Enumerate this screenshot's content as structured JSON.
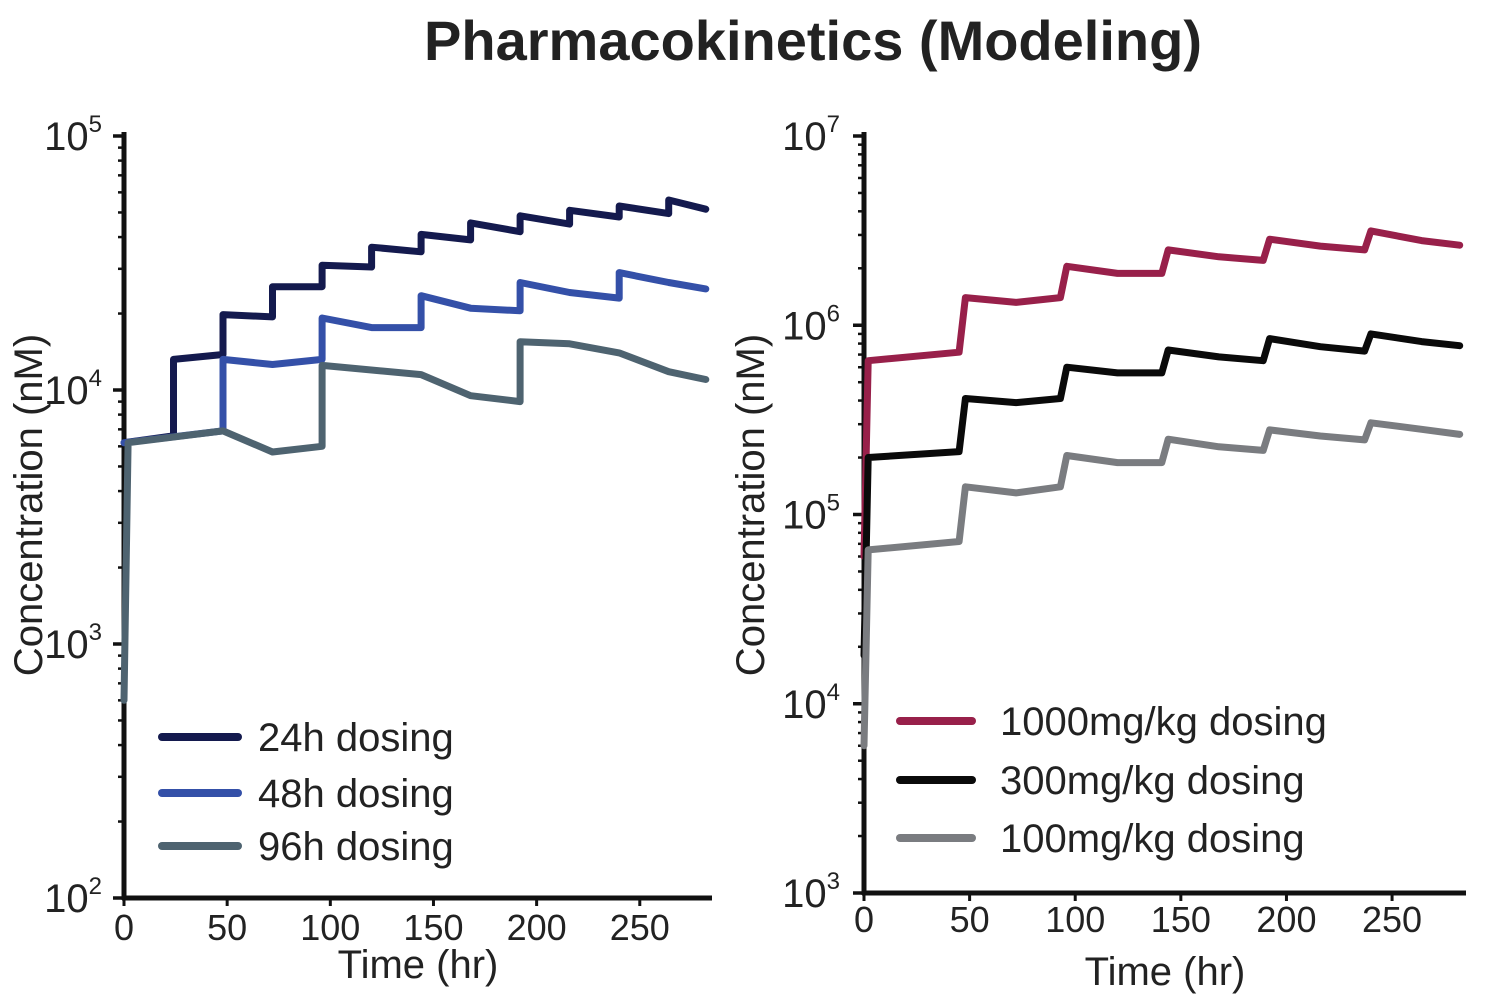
{
  "page_title": "Pharmacokinetics (Modeling)",
  "chart_data": [
    {
      "type": "line",
      "title": "",
      "xlabel": "Time (hr)",
      "ylabel": "Concentration (nM)",
      "yscale": "log",
      "xlim": [
        0,
        285
      ],
      "ylim": [
        100,
        100000
      ],
      "xticks": [
        0,
        50,
        100,
        150,
        200,
        250
      ],
      "xtick_labels": [
        "0",
        "50",
        "100",
        "150",
        "200",
        "250"
      ],
      "yticks": [
        100,
        1000,
        10000,
        100000
      ],
      "ytick_labels": [
        {
          "base": "10",
          "exp": "2"
        },
        {
          "base": "10",
          "exp": "3"
        },
        {
          "base": "10",
          "exp": "4"
        },
        {
          "base": "10",
          "exp": "5"
        }
      ],
      "legend_position": "bottom-left",
      "series": [
        {
          "name": "24h dosing",
          "color": "#141a4e",
          "points": [
            [
              0,
              6200
            ],
            [
              24,
              6600
            ],
            [
              24,
              13200
            ],
            [
              48,
              13800
            ],
            [
              48,
              19800
            ],
            [
              72,
              19400
            ],
            [
              72,
              25500
            ],
            [
              96,
              25500
            ],
            [
              96,
              31000
            ],
            [
              120,
              30500
            ],
            [
              120,
              36500
            ],
            [
              144,
              35000
            ],
            [
              144,
              41000
            ],
            [
              168,
              39000
            ],
            [
              168,
              45500
            ],
            [
              192,
              42000
            ],
            [
              192,
              48500
            ],
            [
              216,
              45000
            ],
            [
              216,
              51000
            ],
            [
              240,
              48000
            ],
            [
              240,
              53000
            ],
            [
              264,
              49500
            ],
            [
              264,
              56000
            ],
            [
              282,
              51500
            ]
          ]
        },
        {
          "name": "48h dosing",
          "color": "#3450a8",
          "points": [
            [
              0,
              6200
            ],
            [
              48,
              6900
            ],
            [
              48,
              13200
            ],
            [
              72,
              12600
            ],
            [
              96,
              13200
            ],
            [
              96,
              19200
            ],
            [
              120,
              17600
            ],
            [
              144,
              17600
            ],
            [
              144,
              23500
            ],
            [
              168,
              21000
            ],
            [
              192,
              20500
            ],
            [
              192,
              26500
            ],
            [
              216,
              24200
            ],
            [
              240,
              23000
            ],
            [
              240,
              29000
            ],
            [
              264,
              26500
            ],
            [
              282,
              25000
            ]
          ]
        },
        {
          "name": "96h dosing",
          "color": "#4e6370",
          "points": [
            [
              0,
              600
            ],
            [
              2,
              6200
            ],
            [
              48,
              6900
            ],
            [
              72,
              5700
            ],
            [
              96,
              6000
            ],
            [
              96,
              12500
            ],
            [
              144,
              11500
            ],
            [
              168,
              9500
            ],
            [
              192,
              9000
            ],
            [
              192,
              15500
            ],
            [
              216,
              15200
            ],
            [
              240,
              14000
            ],
            [
              264,
              11800
            ],
            [
              282,
              11000
            ]
          ]
        }
      ]
    },
    {
      "type": "line",
      "title": "",
      "xlabel": "Time (hr)",
      "ylabel": "Concentration (nM)",
      "yscale": "log",
      "xlim": [
        0,
        285
      ],
      "ylim": [
        1000,
        10000000
      ],
      "xticks": [
        0,
        50,
        100,
        150,
        200,
        250
      ],
      "xtick_labels": [
        "0",
        "50",
        "100",
        "150",
        "200",
        "250"
      ],
      "yticks": [
        1000,
        10000,
        100000,
        1000000,
        10000000
      ],
      "ytick_labels": [
        {
          "base": "10",
          "exp": "3"
        },
        {
          "base": "10",
          "exp": "4"
        },
        {
          "base": "10",
          "exp": "5"
        },
        {
          "base": "10",
          "exp": "6"
        },
        {
          "base": "10",
          "exp": "7"
        }
      ],
      "legend_position": "bottom-right",
      "series": [
        {
          "name": "1000mg/kg dosing",
          "color": "#98204a",
          "points": [
            [
              0,
              60000
            ],
            [
              2,
              650000
            ],
            [
              45,
              720000
            ],
            [
              48,
              1400000
            ],
            [
              72,
              1320000
            ],
            [
              93,
              1400000
            ],
            [
              96,
              2050000
            ],
            [
              120,
              1880000
            ],
            [
              141,
              1880000
            ],
            [
              144,
              2500000
            ],
            [
              168,
              2300000
            ],
            [
              189,
              2200000
            ],
            [
              192,
              2850000
            ],
            [
              216,
              2620000
            ],
            [
              237,
              2500000
            ],
            [
              240,
              3150000
            ],
            [
              264,
              2800000
            ],
            [
              282,
              2650000
            ]
          ]
        },
        {
          "name": "300mg/kg dosing",
          "color": "#0a0a0a",
          "points": [
            [
              0,
              18000
            ],
            [
              2,
              200000
            ],
            [
              45,
              215000
            ],
            [
              48,
              410000
            ],
            [
              72,
              390000
            ],
            [
              93,
              410000
            ],
            [
              96,
              600000
            ],
            [
              120,
              560000
            ],
            [
              141,
              560000
            ],
            [
              144,
              740000
            ],
            [
              168,
              680000
            ],
            [
              189,
              650000
            ],
            [
              192,
              850000
            ],
            [
              216,
              770000
            ],
            [
              237,
              730000
            ],
            [
              240,
              900000
            ],
            [
              264,
              820000
            ],
            [
              282,
              780000
            ]
          ]
        },
        {
          "name": "100mg/kg dosing",
          "color": "#7a7c80",
          "points": [
            [
              0,
              6000
            ],
            [
              2,
              65000
            ],
            [
              45,
              72000
            ],
            [
              48,
              140000
            ],
            [
              72,
              130000
            ],
            [
              93,
              140000
            ],
            [
              96,
              205000
            ],
            [
              120,
              188000
            ],
            [
              141,
              188000
            ],
            [
              144,
              250000
            ],
            [
              168,
              228000
            ],
            [
              189,
              218000
            ],
            [
              192,
              280000
            ],
            [
              216,
              260000
            ],
            [
              237,
              248000
            ],
            [
              240,
              305000
            ],
            [
              264,
              282000
            ],
            [
              282,
              265000
            ]
          ]
        }
      ]
    }
  ]
}
